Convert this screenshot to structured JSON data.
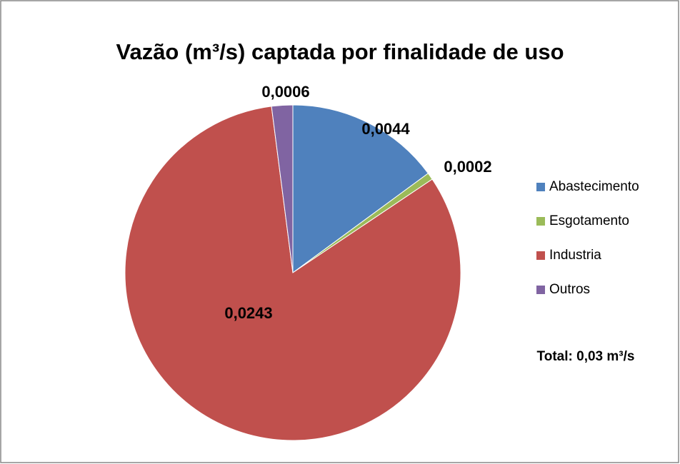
{
  "chart_data": {
    "type": "pie",
    "title": "Vazão (m³/s) captada por finalidade de uso",
    "categories": [
      "Abastecimento",
      "Esgotamento",
      "Industria",
      "Outros"
    ],
    "values": [
      0.0044,
      0.0002,
      0.0243,
      0.0006
    ],
    "value_labels": [
      "0,0044",
      "0,0002",
      "0,0243",
      "0,0006"
    ],
    "colors": [
      "#4f81bd",
      "#9bbb59",
      "#c0504d",
      "#8064a2"
    ],
    "legend": "right",
    "annotation": "Total: 0,03 m³/s"
  }
}
